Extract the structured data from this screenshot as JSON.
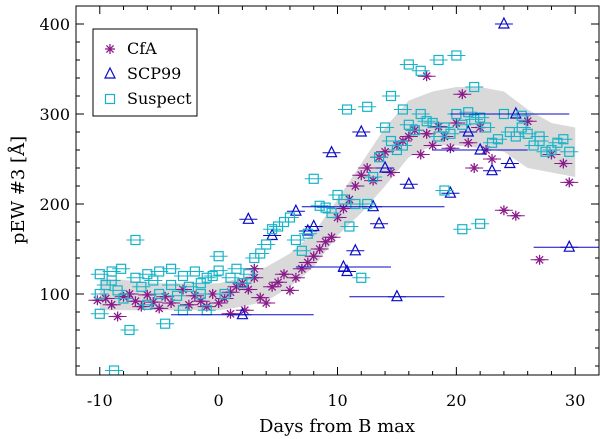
{
  "chart_data": {
    "type": "scatter",
    "title": "",
    "xlabel": "Days from B max",
    "ylabel": "pEW #3 [Å]",
    "xlim": [
      -12,
      32
    ],
    "ylim": [
      10,
      420
    ],
    "xticks": [
      -10,
      0,
      10,
      20,
      30
    ],
    "yticks": [
      100,
      200,
      300,
      400
    ],
    "legend": {
      "position": "top-left",
      "entries": [
        "CfA",
        "SCP99",
        "Suspect"
      ]
    },
    "band": {
      "upper": [
        [
          -10,
          118
        ],
        [
          -5,
          112
        ],
        [
          0,
          112
        ],
        [
          2,
          118
        ],
        [
          4,
          130
        ],
        [
          6,
          145
        ],
        [
          8,
          168
        ],
        [
          10,
          205
        ],
        [
          12,
          245
        ],
        [
          14,
          285
        ],
        [
          16,
          315
        ],
        [
          18,
          325
        ],
        [
          20,
          330
        ],
        [
          22,
          330
        ],
        [
          24,
          325
        ],
        [
          26,
          305
        ],
        [
          28,
          290
        ],
        [
          30,
          285
        ]
      ],
      "lower": [
        [
          -10,
          82
        ],
        [
          -5,
          82
        ],
        [
          0,
          82
        ],
        [
          2,
          86
        ],
        [
          4,
          92
        ],
        [
          6,
          108
        ],
        [
          8,
          130
        ],
        [
          10,
          165
        ],
        [
          12,
          190
        ],
        [
          14,
          220
        ],
        [
          16,
          252
        ],
        [
          18,
          265
        ],
        [
          20,
          265
        ],
        [
          22,
          262
        ],
        [
          24,
          258
        ],
        [
          26,
          240
        ],
        [
          28,
          235
        ],
        [
          30,
          230
        ]
      ]
    },
    "series": [
      {
        "name": "CfA",
        "color": "#8b1a8b",
        "marker": "asterisk",
        "points": [
          [
            -10.2,
            93
          ],
          [
            -9.5,
            95
          ],
          [
            -9,
            88
          ],
          [
            -8.5,
            75
          ],
          [
            -8,
            97
          ],
          [
            -7.5,
            100
          ],
          [
            -7,
            92
          ],
          [
            -6.5,
            86
          ],
          [
            -6,
            99
          ],
          [
            -5.5,
            91
          ],
          [
            -5,
            84
          ],
          [
            -4.5,
            97
          ],
          [
            -4,
            90
          ],
          [
            -3,
            105
          ],
          [
            -2.5,
            88
          ],
          [
            -2,
            98
          ],
          [
            -1.5,
            92
          ],
          [
            -1,
            86
          ],
          [
            -0.5,
            100
          ],
          [
            0,
            90
          ],
          [
            0.5,
            95
          ],
          [
            1,
            102
          ],
          [
            1.5,
            108
          ],
          [
            2,
            112
          ],
          [
            2.5,
            105
          ],
          [
            3,
            118
          ],
          [
            3.5,
            96
          ],
          [
            4,
            90
          ],
          [
            4.5,
            108
          ],
          [
            5,
            113
          ],
          [
            5.5,
            122
          ],
          [
            6,
            104
          ],
          [
            6.5,
            118
          ],
          [
            7,
            128
          ],
          [
            7.5,
            135
          ],
          [
            8,
            142
          ],
          [
            8.5,
            150
          ],
          [
            9,
            158
          ],
          [
            9.5,
            163
          ],
          [
            10,
            185
          ],
          [
            10.5,
            195
          ],
          [
            11,
            205
          ],
          [
            11.5,
            220
          ],
          [
            12,
            232
          ],
          [
            12.5,
            240
          ],
          [
            13,
            226
          ],
          [
            13.5,
            252
          ],
          [
            14,
            258
          ],
          [
            14.5,
            235
          ],
          [
            15,
            265
          ],
          [
            15.5,
            270
          ],
          [
            16,
            275
          ],
          [
            16.5,
            282
          ],
          [
            17,
            255
          ],
          [
            17.5,
            278
          ],
          [
            18,
            265
          ],
          [
            18.5,
            286
          ],
          [
            19,
            275
          ],
          [
            19.5,
            262
          ],
          [
            20,
            290
          ],
          [
            20.5,
            322
          ],
          [
            21,
            268
          ],
          [
            21.5,
            240
          ],
          [
            22,
            285
          ],
          [
            22.5,
            260
          ],
          [
            23,
            250
          ],
          [
            24,
            193
          ],
          [
            25,
            187
          ],
          [
            26,
            292
          ],
          [
            27,
            138
          ],
          [
            28,
            255
          ],
          [
            29,
            245
          ],
          [
            29.5,
            224
          ],
          [
            17.5,
            342
          ],
          [
            3,
            128
          ],
          [
            1,
            78
          ],
          [
            2.2,
            82
          ]
        ]
      },
      {
        "name": "SCP99",
        "color": "#0a0ac8",
        "marker": "triangle",
        "points": [
          [
            2,
            77
          ],
          [
            2.5,
            183
          ],
          [
            4.5,
            165
          ],
          [
            6.5,
            192
          ],
          [
            7.5,
            170
          ],
          [
            8,
            175
          ],
          [
            9.5,
            257
          ],
          [
            10.5,
            130
          ],
          [
            10.8,
            125
          ],
          [
            12,
            280
          ],
          [
            13,
            197
          ],
          [
            13.5,
            178
          ],
          [
            15,
            97
          ],
          [
            19.5,
            212
          ],
          [
            22,
            260
          ],
          [
            23,
            237
          ],
          [
            24,
            400
          ],
          [
            24.5,
            245
          ],
          [
            25,
            300
          ],
          [
            29.5,
            152
          ],
          [
            11.5,
            148
          ],
          [
            14,
            240
          ],
          [
            16,
            222
          ],
          [
            21,
            280
          ]
        ]
      },
      {
        "name": "Suspect",
        "color": "#17b3c8",
        "marker": "square",
        "points": [
          [
            -10,
            122
          ],
          [
            -10,
            100
          ],
          [
            -10,
            78
          ],
          [
            -9.5,
            110
          ],
          [
            -9,
            125
          ],
          [
            -9,
            115
          ],
          [
            -8.5,
            104
          ],
          [
            -8.2,
            128
          ],
          [
            -8,
            95
          ],
          [
            -7.5,
            60
          ],
          [
            -7,
            160
          ],
          [
            -7,
            118
          ],
          [
            -6.5,
            108
          ],
          [
            -6,
            122
          ],
          [
            -6,
            88
          ],
          [
            -5.5,
            115
          ],
          [
            -5,
            100
          ],
          [
            -5,
            125
          ],
          [
            -4.5,
            67
          ],
          [
            -4,
            110
          ],
          [
            -4,
            128
          ],
          [
            -3.5,
            98
          ],
          [
            -3,
            120
          ],
          [
            -3,
            82
          ],
          [
            -2.5,
            108
          ],
          [
            -2,
            125
          ],
          [
            -1.5,
            100
          ],
          [
            -1.5,
            112
          ],
          [
            -1,
            118
          ],
          [
            -0.5,
            120
          ],
          [
            0,
            142
          ],
          [
            0,
            126
          ],
          [
            0.5,
            100
          ],
          [
            1,
            118
          ],
          [
            1.5,
            128
          ],
          [
            2,
            112
          ],
          [
            2.5,
            122
          ],
          [
            3,
            140
          ],
          [
            3.5,
            145
          ],
          [
            4,
            155
          ],
          [
            4.5,
            172
          ],
          [
            5,
            175
          ],
          [
            5.5,
            180
          ],
          [
            6,
            185
          ],
          [
            6.5,
            160
          ],
          [
            7,
            148
          ],
          [
            7.5,
            167
          ],
          [
            8,
            228
          ],
          [
            8.5,
            198
          ],
          [
            9,
            196
          ],
          [
            9.5,
            190
          ],
          [
            10,
            210
          ],
          [
            10.5,
            205
          ],
          [
            10.8,
            305
          ],
          [
            11,
            175
          ],
          [
            11.5,
            200
          ],
          [
            12,
            118
          ],
          [
            12.5,
            200
          ],
          [
            13,
            230
          ],
          [
            13.5,
            252
          ],
          [
            14,
            285
          ],
          [
            14.5,
            270
          ],
          [
            15,
            260
          ],
          [
            15.5,
            265
          ],
          [
            16,
            288
          ],
          [
            16.5,
            282
          ],
          [
            17,
            300
          ],
          [
            17.5,
            292
          ],
          [
            18,
            290
          ],
          [
            18.5,
            275
          ],
          [
            19,
            285
          ],
          [
            19.5,
            278
          ],
          [
            20,
            300
          ],
          [
            20.5,
            288
          ],
          [
            21,
            302
          ],
          [
            21.5,
            294
          ],
          [
            22,
            296
          ],
          [
            22.5,
            285
          ],
          [
            23,
            268
          ],
          [
            23.5,
            272
          ],
          [
            24,
            300
          ],
          [
            24.5,
            280
          ],
          [
            25,
            275
          ],
          [
            25.5,
            285
          ],
          [
            26,
            278
          ],
          [
            26.5,
            265
          ],
          [
            27,
            270
          ],
          [
            27.5,
            258
          ],
          [
            28,
            260
          ],
          [
            28.5,
            268
          ],
          [
            29,
            272
          ],
          [
            29.5,
            258
          ],
          [
            16,
            355
          ],
          [
            17,
            348
          ],
          [
            18.5,
            360
          ],
          [
            20,
            365
          ],
          [
            21.5,
            330
          ],
          [
            19,
            215
          ],
          [
            20.5,
            172
          ],
          [
            22,
            178
          ],
          [
            12.5,
            308
          ],
          [
            14.5,
            320
          ],
          [
            15.5,
            305
          ],
          [
            -8.8,
            15
          ],
          [
            -1,
            82
          ],
          [
            25.5,
            298
          ],
          [
            27,
            275
          ]
        ]
      }
    ]
  }
}
